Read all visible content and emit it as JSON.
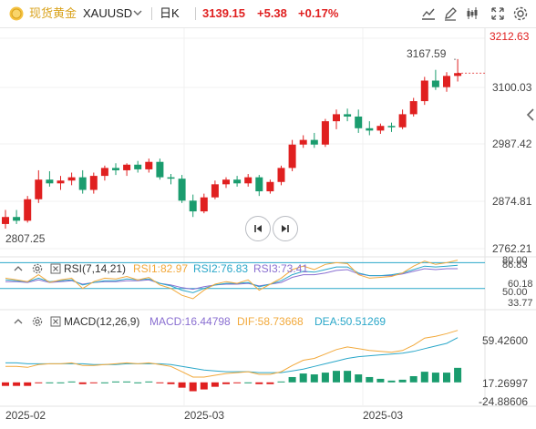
{
  "header": {
    "app_name": "现货黄金",
    "symbol": "XAUUSD",
    "timeframe": "日K",
    "price": "3139.15",
    "change": "+5.38",
    "change_pct": "+0.17%",
    "up_color": "#e02020",
    "down_color": "#1a9c6e",
    "icons": [
      "gold-coin-icon",
      "chevron-down-icon",
      "line-chart-icon",
      "draw-pencil-icon",
      "candle-style-icon",
      "expand-icon",
      "settings-icon"
    ]
  },
  "price_axis": {
    "ticks": [
      "3212.63",
      "3100.03",
      "2987.42",
      "2874.81",
      "2762.21"
    ]
  },
  "annotations": {
    "high_label": "3167.59",
    "low_label": "2807.25"
  },
  "rsi": {
    "name": "RSI(7,14,21)",
    "rsi1": "RSI1:82.97",
    "rsi2": "RSI2:76.83",
    "rsi3": "RSI3:73.41",
    "colors": {
      "rsi1": "#f2a93b",
      "rsi2": "#2aa7c9",
      "rsi3": "#8a6fd1"
    },
    "ticks": [
      "80.00",
      "86.83",
      "60.18",
      "50.00",
      "33.77"
    ]
  },
  "macd": {
    "name": "MACD(12,26,9)",
    "macd": "MACD:16.44798",
    "dif": "DIF:58.73668",
    "dea": "DEA:50.51269",
    "colors": {
      "macd": "#8a6fd1",
      "dif": "#f2a93b",
      "dea": "#2aa7c9"
    },
    "ticks": [
      "59.42600",
      "17.26997",
      "-24.88606"
    ]
  },
  "x_axis": {
    "labels": [
      "2025-02",
      "2025-03",
      "2025-03"
    ]
  },
  "chart_data": {
    "type": "candlestick",
    "series": [
      {
        "name": "XAUUSD",
        "values": [
          [
            2815,
            2845,
            2805,
            2830
          ],
          [
            2830,
            2845,
            2815,
            2822
          ],
          [
            2822,
            2875,
            2818,
            2868
          ],
          [
            2868,
            2930,
            2860,
            2910
          ],
          [
            2910,
            2928,
            2895,
            2902
          ],
          [
            2902,
            2918,
            2888,
            2908
          ],
          [
            2908,
            2925,
            2898,
            2915
          ],
          [
            2915,
            2930,
            2880,
            2888
          ],
          [
            2888,
            2925,
            2880,
            2918
          ],
          [
            2918,
            2940,
            2908,
            2935
          ],
          [
            2935,
            2945,
            2920,
            2930
          ],
          [
            2930,
            2945,
            2918,
            2942
          ],
          [
            2942,
            2950,
            2925,
            2932
          ],
          [
            2932,
            2955,
            2925,
            2948
          ],
          [
            2948,
            2955,
            2910,
            2915
          ],
          [
            2915,
            2922,
            2900,
            2912
          ],
          [
            2912,
            2920,
            2860,
            2865
          ],
          [
            2865,
            2878,
            2830,
            2842
          ],
          [
            2842,
            2880,
            2838,
            2872
          ],
          [
            2872,
            2908,
            2868,
            2900
          ],
          [
            2900,
            2915,
            2892,
            2910
          ],
          [
            2910,
            2918,
            2895,
            2902
          ],
          [
            2902,
            2922,
            2895,
            2915
          ],
          [
            2915,
            2920,
            2875,
            2885
          ],
          [
            2885,
            2910,
            2880,
            2905
          ],
          [
            2905,
            2940,
            2898,
            2935
          ],
          [
            2935,
            2995,
            2928,
            2985
          ],
          [
            2985,
            3005,
            2978,
            2995
          ],
          [
            2995,
            3010,
            2978,
            2985
          ],
          [
            2985,
            3040,
            2980,
            3035
          ],
          [
            3035,
            3060,
            3018,
            3050
          ],
          [
            3050,
            3062,
            3035,
            3045
          ],
          [
            3045,
            3060,
            3010,
            3020
          ],
          [
            3020,
            3035,
            3005,
            3015
          ],
          [
            3015,
            3030,
            3008,
            3025
          ],
          [
            3025,
            3032,
            3012,
            3022
          ],
          [
            3022,
            3060,
            3018,
            3050
          ],
          [
            3050,
            3085,
            3045,
            3078
          ],
          [
            3078,
            3130,
            3070,
            3122
          ],
          [
            3122,
            3145,
            3102,
            3108
          ],
          [
            3108,
            3140,
            3098,
            3132
          ],
          [
            3132,
            3168,
            3120,
            3138
          ]
        ]
      }
    ],
    "ylim": [
      2762.21,
      3212.63
    ],
    "high": 3167.59,
    "low": 2807.25,
    "rsi": {
      "ylim": [
        33.77,
        86.83
      ],
      "rsi1": [
        62,
        60,
        58,
        66,
        57,
        60,
        62,
        50,
        58,
        62,
        61,
        64,
        60,
        63,
        54,
        50,
        42,
        38,
        48,
        55,
        58,
        56,
        60,
        48,
        55,
        62,
        72,
        76,
        72,
        78,
        80,
        79,
        66,
        62,
        63,
        64,
        68,
        76,
        82,
        78,
        80,
        83
      ],
      "rsi2": [
        60,
        59,
        58,
        62,
        58,
        59,
        60,
        54,
        57,
        59,
        59,
        61,
        60,
        61,
        56,
        53,
        48,
        45,
        50,
        54,
        56,
        56,
        57,
        52,
        55,
        59,
        66,
        70,
        69,
        72,
        75,
        75,
        68,
        65,
        65,
        66,
        68,
        72,
        76,
        75,
        76,
        77
      ],
      "rsi3": [
        58,
        58,
        57,
        60,
        57,
        58,
        59,
        55,
        57,
        58,
        58,
        59,
        59,
        60,
        56,
        54,
        51,
        49,
        52,
        54,
        55,
        55,
        56,
        53,
        55,
        57,
        63,
        66,
        66,
        68,
        71,
        72,
        67,
        65,
        65,
        65,
        67,
        70,
        73,
        72,
        73,
        73
      ]
    },
    "macd": {
      "ylim": [
        -24.88606,
        59.426
      ],
      "dif": [
        18,
        18,
        17,
        20,
        21,
        21,
        22,
        19,
        19,
        20,
        21,
        22,
        21,
        22,
        20,
        18,
        12,
        6,
        6,
        8,
        10,
        11,
        12,
        9,
        9,
        12,
        19,
        25,
        27,
        32,
        37,
        40,
        38,
        36,
        35,
        34,
        36,
        42,
        50,
        52,
        55,
        58.7
      ],
      "dea": [
        22,
        22,
        21,
        21,
        21,
        21,
        21,
        21,
        20,
        20,
        20,
        21,
        21,
        21,
        21,
        20,
        18,
        16,
        14,
        13,
        12,
        12,
        12,
        11,
        11,
        11,
        13,
        15,
        18,
        21,
        24,
        27,
        29,
        30,
        31,
        32,
        33,
        35,
        38,
        41,
        44,
        50.5
      ],
      "hist": [
        -4,
        -4,
        -4,
        -1,
        0,
        0,
        1,
        -2,
        -1,
        0,
        1,
        1,
        0,
        1,
        -1,
        -2,
        -6,
        -10,
        -8,
        -5,
        -2,
        -1,
        0,
        -2,
        -2,
        1,
        6,
        10,
        9,
        11,
        13,
        13,
        9,
        6,
        4,
        2,
        3,
        7,
        12,
        11,
        11,
        16.4
      ]
    }
  }
}
